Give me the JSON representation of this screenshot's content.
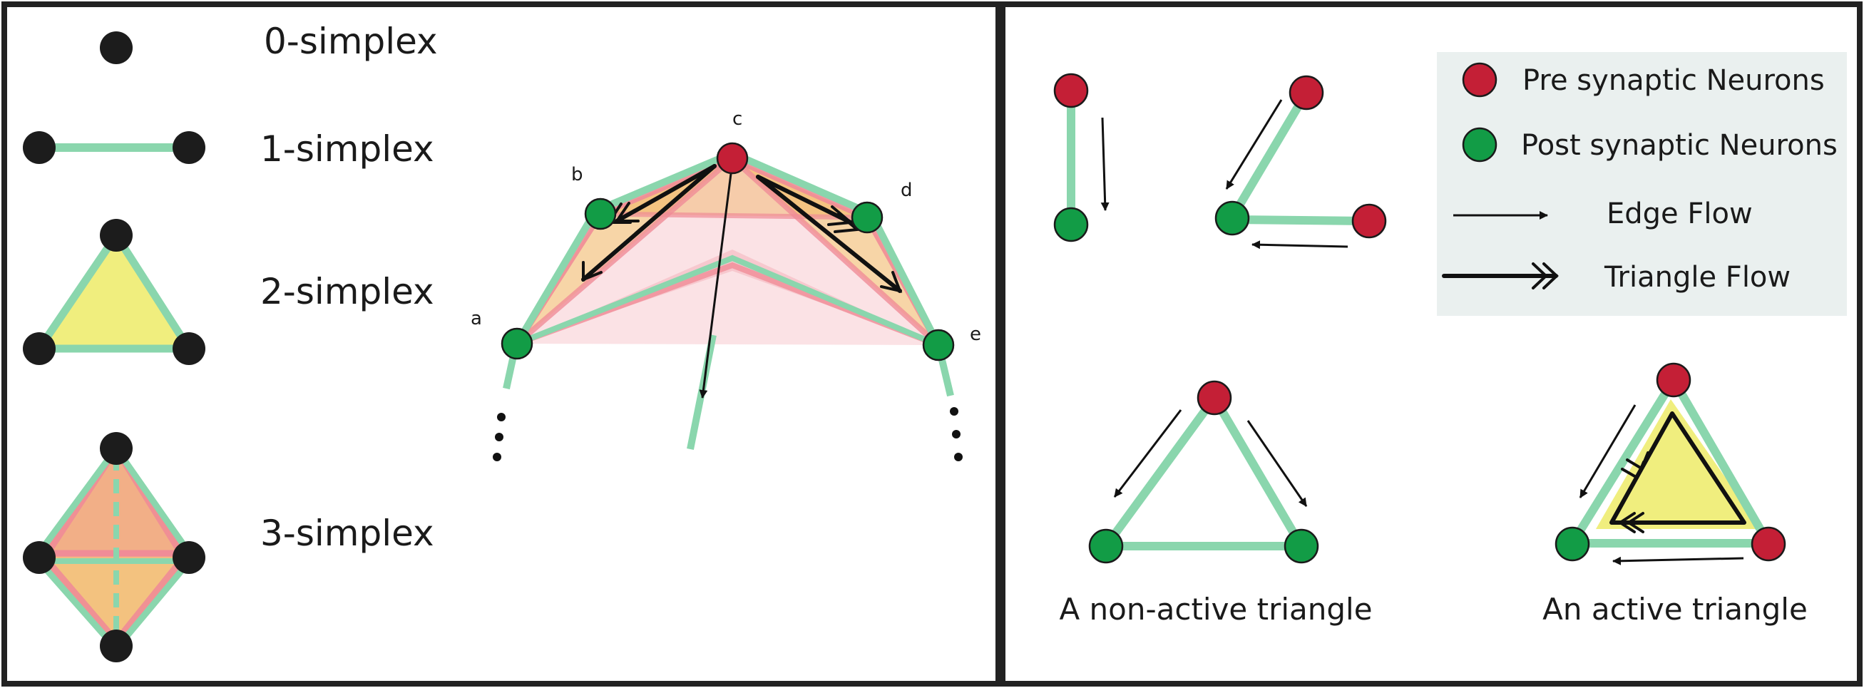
{
  "colors": {
    "node_black": "#1c1c1c",
    "pre_synaptic_red": "#c41f36",
    "post_synaptic_green": "#129c46",
    "edge_green": "#8ad6ad",
    "edge_pink": "#f08c97",
    "triangle_yellow": "#f0ee7e",
    "fill_orange": "#eda23b",
    "legend_background": "#eaf0ef",
    "frame": "#222222"
  },
  "left_panel": {
    "simplex_labels": [
      "0-simplex",
      "1-simplex",
      "2-simplex",
      "3-simplex"
    ],
    "complex_node_labels": [
      "a",
      "b",
      "c",
      "d",
      "e"
    ]
  },
  "legend": {
    "pre": "Pre synaptic Neurons",
    "post": "Post synaptic Neurons",
    "edge_flow": "Edge Flow",
    "triangle_flow": "Triangle Flow"
  },
  "captions": {
    "non_active": "A non-active triangle",
    "active": "An active triangle"
  }
}
